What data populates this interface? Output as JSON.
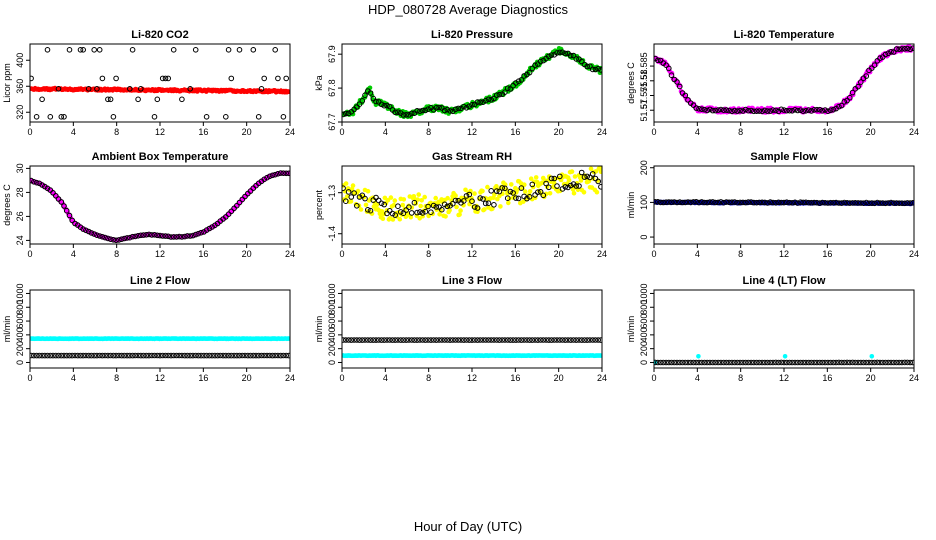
{
  "figure": {
    "title": "HDP_080728  Average Diagnostics",
    "xlabel": "Hour of Day (UTC)"
  },
  "chart_data": [
    {
      "type": "scatter",
      "title": "Li-820 CO2",
      "ylabel": "Licor ppm",
      "xlim": [
        0,
        24
      ],
      "xticks": [
        0,
        4,
        8,
        12,
        16,
        20,
        24
      ],
      "ylim": [
        305,
        425
      ],
      "yticks": [
        320,
        360,
        400
      ],
      "series": [
        {
          "name": "red",
          "color": "#ff0000",
          "style": "filled",
          "pattern": "flat",
          "start": 356,
          "end": 352,
          "noise": 1.5
        },
        {
          "name": "black",
          "color": "#000000",
          "style": "open",
          "pattern": "discrete",
          "levels": [
            313,
            340,
            356,
            372,
            416
          ]
        }
      ]
    },
    {
      "type": "scatter",
      "title": "Li-820 Pressure",
      "ylabel": "kPa",
      "xlim": [
        0,
        24
      ],
      "xticks": [
        0,
        4,
        8,
        12,
        16,
        20,
        24
      ],
      "ylim": [
        67.7,
        67.93
      ],
      "yticks": [
        67.7,
        67.8,
        67.9
      ],
      "series": [
        {
          "name": "green",
          "color": "#00cc00",
          "style": "filled",
          "pattern": "pressure",
          "noise": 0.008
        },
        {
          "name": "black",
          "color": "#000000",
          "style": "open",
          "pattern": "pressure",
          "noise": 0.004
        }
      ]
    },
    {
      "type": "scatter",
      "title": "Li-820 Temperature",
      "ylabel": "degrees C",
      "xlim": [
        0,
        24
      ],
      "xticks": [
        0,
        4,
        8,
        12,
        16,
        20,
        24
      ],
      "ylim": [
        51.566,
        51.5925
      ],
      "yticks": [
        51.57,
        51.575,
        51.58,
        51.585
      ],
      "series": [
        {
          "name": "magenta",
          "color": "#ff00ff",
          "style": "filled",
          "pattern": "temperature",
          "noise": 0.0008
        },
        {
          "name": "black",
          "color": "#000000",
          "style": "open",
          "pattern": "temperature",
          "noise": 0.0004
        }
      ]
    },
    {
      "type": "scatter",
      "title": "Ambient Box Temperature",
      "ylabel": "degrees C",
      "xlim": [
        0,
        24
      ],
      "xticks": [
        0,
        4,
        8,
        12,
        16,
        20,
        24
      ],
      "ylim": [
        23.7,
        30.2
      ],
      "yticks": [
        24,
        26,
        28,
        30
      ],
      "series": [
        {
          "name": "magenta",
          "color": "#ff00ff",
          "style": "filled",
          "pattern": "ambient",
          "noise": 0.03
        },
        {
          "name": "black",
          "color": "#000000",
          "style": "open",
          "pattern": "ambient",
          "noise": 0.02
        }
      ]
    },
    {
      "type": "scatter",
      "title": "Gas Stream RH",
      "ylabel": "percent",
      "xlim": [
        0,
        24
      ],
      "xticks": [
        0,
        4,
        8,
        12,
        16,
        20,
        24
      ],
      "ylim": [
        -1.425,
        -1.235
      ],
      "yticks": [
        -1.4,
        -1.3
      ],
      "series": [
        {
          "name": "yellow",
          "color": "#ffff00",
          "style": "filled",
          "pattern": "rh",
          "noise": 0.03
        },
        {
          "name": "black",
          "color": "#000000",
          "style": "open",
          "pattern": "rh",
          "noise": 0.02
        }
      ]
    },
    {
      "type": "scatter",
      "title": "Sample Flow",
      "ylabel": "ml/min",
      "xlim": [
        0,
        24
      ],
      "xticks": [
        0,
        4,
        8,
        12,
        16,
        20,
        24
      ],
      "ylim": [
        -20,
        205
      ],
      "yticks": [
        0,
        100,
        200
      ],
      "series": [
        {
          "name": "blue",
          "color": "#0000cc",
          "style": "filled",
          "pattern": "flat",
          "start": 100,
          "end": 97,
          "noise": 1.5
        },
        {
          "name": "black",
          "color": "#000000",
          "style": "open",
          "pattern": "flat",
          "start": 101,
          "end": 98,
          "noise": 1.2
        }
      ]
    },
    {
      "type": "scatter",
      "title": "Line 2 Flow",
      "ylabel": "ml/min",
      "xlim": [
        0,
        24
      ],
      "xticks": [
        0,
        4,
        8,
        12,
        16,
        20,
        24
      ],
      "ylim": [
        -80,
        1050
      ],
      "yticks": [
        0,
        200,
        400,
        600,
        800,
        1000
      ],
      "series": [
        {
          "name": "cyan",
          "color": "#00ffff",
          "style": "filled",
          "pattern": "flat",
          "start": 345,
          "end": 345,
          "noise": 3
        },
        {
          "name": "black",
          "color": "#000000",
          "style": "open",
          "pattern": "flat",
          "start": 100,
          "end": 100,
          "noise": 1
        }
      ]
    },
    {
      "type": "scatter",
      "title": "Line 3 Flow",
      "ylabel": "ml/min",
      "xlim": [
        0,
        24
      ],
      "xticks": [
        0,
        4,
        8,
        12,
        16,
        20,
        24
      ],
      "ylim": [
        -80,
        1050
      ],
      "yticks": [
        0,
        200,
        400,
        600,
        800,
        1000
      ],
      "series": [
        {
          "name": "cyan",
          "color": "#00ffff",
          "style": "filled",
          "pattern": "flat",
          "start": 100,
          "end": 100,
          "noise": 3
        },
        {
          "name": "black",
          "color": "#000000",
          "style": "open",
          "pattern": "flat",
          "start": 325,
          "end": 325,
          "noise": 1
        }
      ]
    },
    {
      "type": "scatter",
      "title": "Line 4 (LT) Flow",
      "ylabel": "ml/min",
      "xlim": [
        0,
        24
      ],
      "xticks": [
        0,
        4,
        8,
        12,
        16,
        20,
        24
      ],
      "ylim": [
        -80,
        1050
      ],
      "yticks": [
        0,
        200,
        400,
        600,
        800,
        1000
      ],
      "series": [
        {
          "name": "cyan",
          "color": "#00ffff",
          "style": "filled",
          "pattern": "points",
          "x": [
            0.1,
            4.1,
            12.1,
            20.1
          ],
          "y": [
            0,
            90,
            90,
            90
          ]
        },
        {
          "name": "black",
          "color": "#000000",
          "style": "open",
          "pattern": "flat",
          "start": 0,
          "end": 0,
          "noise": 0.5
        }
      ]
    }
  ]
}
